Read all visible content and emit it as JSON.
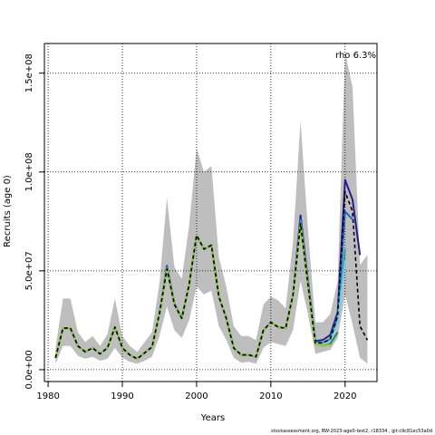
{
  "chart_data": {
    "type": "line",
    "title": "",
    "xlabel": "Years",
    "ylabel": "Recruits (age 0)",
    "xlim": [
      1979.5,
      2024.3
    ],
    "ylim": [
      -6000000,
      165000000
    ],
    "x_ticks": [
      1980,
      1990,
      2000,
      2010,
      2020
    ],
    "x_tick_labels": [
      "1980",
      "1990",
      "2000",
      "2010",
      "2020"
    ],
    "y_ticks": [
      0,
      50000000,
      100000000,
      150000000
    ],
    "y_tick_labels": [
      "0.0e+00",
      "5.0e+07",
      "1.0e+08",
      "1.5e+08"
    ],
    "grid": true,
    "annotation": "rho 6.3%",
    "footer": "stockassessment.org, BW-2023-age0-test2, r18334 , git:c9c81ec53a0d",
    "band": {
      "color": "#bebebe",
      "x": [
        1981,
        1982,
        1983,
        1984,
        1985,
        1986,
        1987,
        1988,
        1989,
        1990,
        1991,
        1992,
        1993,
        1994,
        1995,
        1996,
        1997,
        1998,
        1999,
        2000,
        2001,
        2002,
        2003,
        2004,
        2005,
        2006,
        2007,
        2008,
        2009,
        2010,
        2011,
        2012,
        2013,
        2014,
        2015,
        2016,
        2017,
        2018,
        2019,
        2020,
        2021,
        2022,
        2023
      ],
      "lower": [
        3000000,
        12000000,
        12000000,
        7000000,
        5500000,
        6500000,
        4500000,
        5500000,
        11000000,
        6000000,
        4000000,
        3000000,
        4500000,
        6500000,
        17000000,
        32000000,
        20000000,
        16000000,
        25000000,
        42000000,
        38000000,
        40000000,
        22000000,
        15000000,
        6000000,
        3500000,
        4000000,
        3000000,
        11000000,
        14000000,
        13000000,
        12000000,
        20000000,
        45000000,
        28000000,
        8000000,
        9000000,
        10000000,
        16000000,
        38000000,
        23000000,
        6000000,
        3000000
      ],
      "upper": [
        11000000,
        36000000,
        36000000,
        19000000,
        14000000,
        17000000,
        12000000,
        18000000,
        36000000,
        17000000,
        12000000,
        9000000,
        14000000,
        19000000,
        44000000,
        87000000,
        52000000,
        46000000,
        73000000,
        112000000,
        100000000,
        103000000,
        57000000,
        42000000,
        22000000,
        17000000,
        17000000,
        15000000,
        33000000,
        37000000,
        35000000,
        31000000,
        65000000,
        126000000,
        71000000,
        24000000,
        24000000,
        28000000,
        45000000,
        160000000,
        143000000,
        53000000,
        58000000
      ]
    },
    "x": [
      1981,
      1982,
      1983,
      1984,
      1985,
      1986,
      1987,
      1988,
      1989,
      1990,
      1991,
      1992,
      1993,
      1994,
      1995,
      1996,
      1997,
      1998,
      1999,
      2000,
      2001,
      2002,
      2003,
      2004,
      2005,
      2006,
      2007,
      2008,
      2009,
      2010,
      2011,
      2012,
      2013,
      2014,
      2015,
      2016,
      2017,
      2018,
      2019,
      2020,
      2021,
      2022,
      2023
    ],
    "series": [
      {
        "color": "#2a1b8a",
        "dash": "",
        "x": [
          1981,
          1982,
          1983,
          1984,
          1985,
          1986,
          1987,
          1988,
          1989,
          1990,
          1991,
          1992,
          1993,
          1994,
          1995,
          1996,
          1997,
          1998,
          1999,
          2000,
          2001,
          2002,
          2003,
          2004,
          2005,
          2006,
          2007,
          2008,
          2009,
          2010,
          2011,
          2012,
          2013,
          2014,
          2015,
          2016,
          2017,
          2018,
          2019,
          2020,
          2021,
          2022
        ],
        "values": [
          6000000,
          21000000,
          21000000,
          12000000,
          9000000,
          11000000,
          8000000,
          11000000,
          21500000,
          11000000,
          7500000,
          5500000,
          8500000,
          11500000,
          28500000,
          52500000,
          33500000,
          26000000,
          43000000,
          68000000,
          61000000,
          63000000,
          37000000,
          26000000,
          11000000,
          7500000,
          7500000,
          6500000,
          20000000,
          24000000,
          21500000,
          21000000,
          38000000,
          78000000,
          45000000,
          14500000,
          15000000,
          17500000,
          29000000,
          96000000,
          86000000,
          58000000
        ]
      },
      {
        "color": "#2266cc",
        "dash": "",
        "x": [
          1981,
          1982,
          1983,
          1984,
          1985,
          1986,
          1987,
          1988,
          1989,
          1990,
          1991,
          1992,
          1993,
          1994,
          1995,
          1996,
          1997,
          1998,
          1999,
          2000,
          2001,
          2002,
          2003,
          2004,
          2005,
          2006,
          2007,
          2008,
          2009,
          2010,
          2011,
          2012,
          2013,
          2014,
          2015,
          2016,
          2017,
          2018,
          2019,
          2020,
          2021
        ],
        "values": [
          6000000,
          21000000,
          21000000,
          12000000,
          9000000,
          11000000,
          8000000,
          11000000,
          21500000,
          11000000,
          7500000,
          5500000,
          8500000,
          11500000,
          28500000,
          52000000,
          33000000,
          26000000,
          43000000,
          68000000,
          61000000,
          63000000,
          37000000,
          26000000,
          11000000,
          7500000,
          7500000,
          6500000,
          20000000,
          24000000,
          21500000,
          21000000,
          38000000,
          76000000,
          44000000,
          14000000,
          13500000,
          15500000,
          27000000,
          80000000,
          76000000
        ]
      },
      {
        "color": "#20a0a8",
        "dash": "",
        "x": [
          1981,
          1982,
          1983,
          1984,
          1985,
          1986,
          1987,
          1988,
          1989,
          1990,
          1991,
          1992,
          1993,
          1994,
          1995,
          1996,
          1997,
          1998,
          1999,
          2000,
          2001,
          2002,
          2003,
          2004,
          2005,
          2006,
          2007,
          2008,
          2009,
          2010,
          2011,
          2012,
          2013,
          2014,
          2015,
          2016,
          2017,
          2018,
          2019,
          2020
        ],
        "values": [
          6000000,
          21000000,
          21000000,
          12000000,
          9000000,
          11000000,
          8000000,
          11000000,
          21500000,
          11000000,
          7500000,
          5500000,
          8500000,
          11500000,
          28500000,
          51500000,
          33000000,
          26000000,
          43000000,
          68000000,
          61000000,
          63000000,
          37000000,
          26000000,
          11000000,
          7500000,
          7500000,
          6500000,
          20000000,
          24000000,
          21500000,
          21000000,
          38000000,
          75000000,
          43500000,
          13500000,
          13000000,
          15000000,
          25000000,
          61000000
        ]
      },
      {
        "color": "#6fcde8",
        "dash": "",
        "x": [
          1981,
          1982,
          1983,
          1984,
          1985,
          1986,
          1987,
          1988,
          1989,
          1990,
          1991,
          1992,
          1993,
          1994,
          1995,
          1996,
          1997,
          1998,
          1999,
          2000,
          2001,
          2002,
          2003,
          2004,
          2005,
          2006,
          2007,
          2008,
          2009,
          2010,
          2011,
          2012,
          2013,
          2014,
          2015,
          2016,
          2017,
          2018,
          2019,
          2020
        ],
        "values": [
          6000000,
          21000000,
          21000000,
          12000000,
          9000000,
          11000000,
          8000000,
          11000000,
          21500000,
          11000000,
          7500000,
          5500000,
          8500000,
          11500000,
          28500000,
          51000000,
          33000000,
          26000000,
          43000000,
          68000000,
          61000000,
          63000000,
          37000000,
          26000000,
          11000000,
          7500000,
          7500000,
          6500000,
          20000000,
          24000000,
          21500000,
          21000000,
          38000000,
          74000000,
          43000000,
          13500000,
          13000000,
          14500000,
          24000000,
          55000000
        ]
      },
      {
        "color": "#2e8b57",
        "dash": "",
        "x": [
          1981,
          1982,
          1983,
          1984,
          1985,
          1986,
          1987,
          1988,
          1989,
          1990,
          1991,
          1992,
          1993,
          1994,
          1995,
          1996,
          1997,
          1998,
          1999,
          2000,
          2001,
          2002,
          2003,
          2004,
          2005,
          2006,
          2007,
          2008,
          2009,
          2010,
          2011,
          2012,
          2013,
          2014,
          2015,
          2016,
          2017,
          2018,
          2019
        ],
        "values": [
          6000000,
          21000000,
          21000000,
          12000000,
          9000000,
          11000000,
          8000000,
          11000000,
          21500000,
          11000000,
          7500000,
          5500000,
          8500000,
          11500000,
          28500000,
          51000000,
          33000000,
          26000000,
          43000000,
          68000000,
          61000000,
          63000000,
          37000000,
          26000000,
          11000000,
          7500000,
          7500000,
          6500000,
          20000000,
          24000000,
          21500000,
          21000000,
          38000000,
          73500000,
          42500000,
          13000000,
          12000000,
          13000000,
          19000000
        ]
      },
      {
        "color": "#9acd32",
        "dash": "",
        "x": [
          1981,
          1982,
          1983,
          1984,
          1985,
          1986,
          1987,
          1988,
          1989,
          1990,
          1991,
          1992,
          1993,
          1994,
          1995,
          1996,
          1997,
          1998,
          1999,
          2000,
          2001,
          2002,
          2003,
          2004,
          2005,
          2006,
          2007,
          2008,
          2009,
          2010,
          2011,
          2012,
          2013,
          2014,
          2015,
          2016,
          2017,
          2018
        ],
        "values": [
          6000000,
          21000000,
          21000000,
          12000000,
          9000000,
          11000000,
          8000000,
          11000000,
          21500000,
          11000000,
          7500000,
          5500000,
          8500000,
          11500000,
          28500000,
          51000000,
          33000000,
          26000000,
          43000000,
          68000000,
          61000000,
          63000000,
          37000000,
          26000000,
          11000000,
          7500000,
          7500000,
          6500000,
          20000000,
          24000000,
          21500000,
          21000000,
          38000000,
          73000000,
          42000000,
          13000000,
          12000000,
          12500000
        ]
      },
      {
        "color": "#000000",
        "dash": "4,3",
        "x": [
          1981,
          1982,
          1983,
          1984,
          1985,
          1986,
          1987,
          1988,
          1989,
          1990,
          1991,
          1992,
          1993,
          1994,
          1995,
          1996,
          1997,
          1998,
          1999,
          2000,
          2001,
          2002,
          2003,
          2004,
          2005,
          2006,
          2007,
          2008,
          2009,
          2010,
          2011,
          2012,
          2013,
          2014,
          2015,
          2016,
          2017,
          2018,
          2019,
          2020,
          2021,
          2022,
          2023
        ],
        "values": [
          6000000,
          21000000,
          21000000,
          12000000,
          9000000,
          11000000,
          8000000,
          11000000,
          21500000,
          11000000,
          7500000,
          5500000,
          8500000,
          11500000,
          28500000,
          51000000,
          33000000,
          26000000,
          43000000,
          68000000,
          61000000,
          63000000,
          37000000,
          26000000,
          11000000,
          7500000,
          7500000,
          6500000,
          20000000,
          24000000,
          21500000,
          21000000,
          38000000,
          74000000,
          43000000,
          13500000,
          13500000,
          15500000,
          27000000,
          90000000,
          80000000,
          22000000,
          15000000
        ]
      }
    ]
  }
}
